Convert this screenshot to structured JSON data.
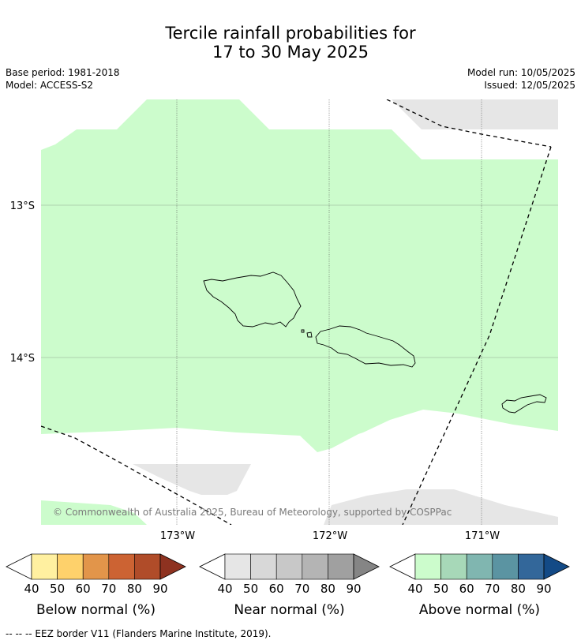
{
  "title": {
    "line1": "Tercile rainfall probabilities for",
    "line2": "17 to 30 May 2025"
  },
  "meta": {
    "base_period": "Base period: 1981-2018",
    "model": "Model: ACCESS-S2",
    "model_run": "Model run: 10/05/2025",
    "issued": "Issued: 12/05/2025"
  },
  "map": {
    "lat_labels": [
      "13°S",
      "14°S"
    ],
    "lon_labels": [
      "173°W",
      "172°W",
      "171°W"
    ],
    "copyright": "© Commonwealth of Australia 2025, Bureau of Meteorology, supported by COSPPac",
    "colors": {
      "above_normal_40_50": "#ccfccc",
      "near_normal_40_50": "#e6e6e6",
      "coastline": "#000000",
      "graticule": "#555555"
    }
  },
  "legends": [
    {
      "label": "Below normal (%)",
      "ticks": [
        "40",
        "50",
        "60",
        "70",
        "80",
        "90"
      ],
      "colors": [
        "#fff0a0",
        "#fed16b",
        "#e2954a",
        "#cc6333",
        "#b04c29",
        "#8e3220"
      ]
    },
    {
      "label": "Near normal (%)",
      "ticks": [
        "40",
        "50",
        "60",
        "70",
        "80",
        "90"
      ],
      "colors": [
        "#e6e6e6",
        "#d8d8d8",
        "#c8c8c8",
        "#b4b4b4",
        "#a0a0a0",
        "#858585"
      ]
    },
    {
      "label": "Above normal (%)",
      "ticks": [
        "40",
        "50",
        "60",
        "70",
        "80",
        "90"
      ],
      "colors": [
        "#ccfccc",
        "#a7d8b8",
        "#80b6b0",
        "#5b94a2",
        "#33679a",
        "#134a86"
      ]
    }
  ],
  "footer": "--  --  -- EEZ border V11 (Flanders Marine Institute, 2019)."
}
